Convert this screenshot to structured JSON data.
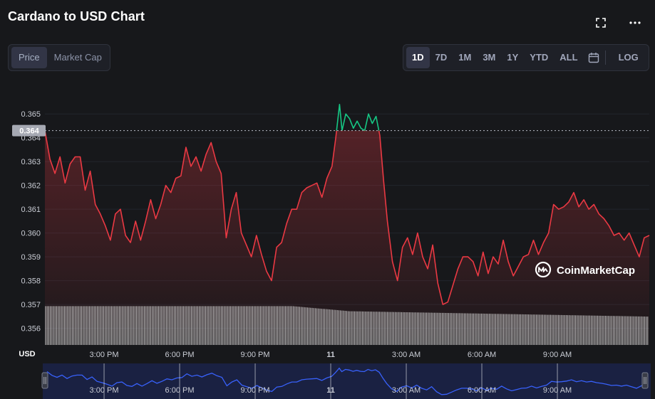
{
  "header": {
    "title": "Cardano to USD Chart",
    "fullscreen_icon": "fullscreen-icon",
    "more_icon": "more-horizontal-icon"
  },
  "view_toggle": {
    "options": [
      "Price",
      "Market Cap"
    ],
    "selected": "Price"
  },
  "ranges": {
    "options": [
      "1D",
      "7D",
      "1M",
      "3M",
      "1Y",
      "YTD",
      "ALL"
    ],
    "selected": "1D",
    "calendar_icon": "calendar-icon",
    "log_label": "LOG"
  },
  "watermark": {
    "text": "CoinMarketCap",
    "icon": "coinmarketcap-logo-icon"
  },
  "colors": {
    "background": "#17181b",
    "down_line": "#ea3943",
    "up_line": "#16c784",
    "navigator_line": "#3861fb",
    "volume": "#e6e6e6"
  },
  "chart_data": {
    "type": "line",
    "title": "Cardano to USD Chart",
    "ylabel": "USD",
    "reference_price": 0.3643,
    "reference_label": "0.364",
    "ylim": [
      0.3553,
      0.3665
    ],
    "yticks": [
      "0.365",
      "0.364",
      "0.363",
      "0.362",
      "0.361",
      "0.360",
      "0.359",
      "0.358",
      "0.357",
      "0.356"
    ],
    "ytick_values": [
      0.365,
      0.364,
      0.363,
      0.362,
      0.361,
      0.36,
      0.359,
      0.358,
      0.357,
      0.356
    ],
    "xlim": [
      0,
      24
    ],
    "xticks": [
      {
        "label": "3:00 PM",
        "hour": 2.35
      },
      {
        "label": "6:00 PM",
        "hour": 5.35
      },
      {
        "label": "9:00 PM",
        "hour": 8.35
      },
      {
        "label": "11",
        "hour": 11.35,
        "bold": true
      },
      {
        "label": "3:00 AM",
        "hour": 14.35
      },
      {
        "label": "6:00 AM",
        "hour": 17.35
      },
      {
        "label": "9:00 AM",
        "hour": 20.35
      }
    ],
    "grid": true,
    "series": [
      {
        "points": [
          [
            0.0,
            0.3643
          ],
          [
            0.2,
            0.3631
          ],
          [
            0.4,
            0.3625
          ],
          [
            0.6,
            0.3632
          ],
          [
            0.8,
            0.3621
          ],
          [
            1.0,
            0.3629
          ],
          [
            1.2,
            0.3632
          ],
          [
            1.4,
            0.3632
          ],
          [
            1.6,
            0.3618
          ],
          [
            1.8,
            0.3626
          ],
          [
            2.0,
            0.3612
          ],
          [
            2.2,
            0.3608
          ],
          [
            2.4,
            0.3603
          ],
          [
            2.6,
            0.3597
          ],
          [
            2.8,
            0.3608
          ],
          [
            3.0,
            0.361
          ],
          [
            3.2,
            0.3599
          ],
          [
            3.4,
            0.3596
          ],
          [
            3.6,
            0.3605
          ],
          [
            3.8,
            0.3597
          ],
          [
            4.0,
            0.3605
          ],
          [
            4.2,
            0.3614
          ],
          [
            4.4,
            0.3606
          ],
          [
            4.6,
            0.3612
          ],
          [
            4.8,
            0.362
          ],
          [
            5.0,
            0.3617
          ],
          [
            5.2,
            0.3623
          ],
          [
            5.4,
            0.3624
          ],
          [
            5.6,
            0.3636
          ],
          [
            5.8,
            0.3628
          ],
          [
            6.0,
            0.3632
          ],
          [
            6.2,
            0.3626
          ],
          [
            6.4,
            0.3633
          ],
          [
            6.6,
            0.3638
          ],
          [
            6.8,
            0.363
          ],
          [
            7.0,
            0.3625
          ],
          [
            7.2,
            0.3598
          ],
          [
            7.4,
            0.361
          ],
          [
            7.6,
            0.3617
          ],
          [
            7.8,
            0.36
          ],
          [
            8.0,
            0.3595
          ],
          [
            8.2,
            0.359
          ],
          [
            8.4,
            0.3599
          ],
          [
            8.6,
            0.3591
          ],
          [
            8.8,
            0.3584
          ],
          [
            9.0,
            0.358
          ],
          [
            9.2,
            0.3594
          ],
          [
            9.4,
            0.3596
          ],
          [
            9.6,
            0.3604
          ],
          [
            9.8,
            0.361
          ],
          [
            10.0,
            0.361
          ],
          [
            10.2,
            0.3617
          ],
          [
            10.4,
            0.3619
          ],
          [
            10.6,
            0.362
          ],
          [
            10.8,
            0.3621
          ],
          [
            11.0,
            0.3615
          ],
          [
            11.2,
            0.3623
          ],
          [
            11.4,
            0.3628
          ],
          [
            11.55,
            0.364
          ],
          [
            11.7,
            0.3654
          ],
          [
            11.8,
            0.3643
          ],
          [
            11.95,
            0.365
          ],
          [
            12.1,
            0.3648
          ],
          [
            12.25,
            0.3644
          ],
          [
            12.4,
            0.3647
          ],
          [
            12.55,
            0.3644
          ],
          [
            12.7,
            0.3643
          ],
          [
            12.85,
            0.365
          ],
          [
            13.0,
            0.3646
          ],
          [
            13.15,
            0.3649
          ],
          [
            13.3,
            0.3641
          ],
          [
            13.45,
            0.3622
          ],
          [
            13.6,
            0.3605
          ],
          [
            13.8,
            0.3588
          ],
          [
            14.0,
            0.358
          ],
          [
            14.2,
            0.3594
          ],
          [
            14.4,
            0.3598
          ],
          [
            14.6,
            0.3591
          ],
          [
            14.8,
            0.36
          ],
          [
            15.0,
            0.359
          ],
          [
            15.2,
            0.3585
          ],
          [
            15.4,
            0.3595
          ],
          [
            15.6,
            0.3579
          ],
          [
            15.8,
            0.357
          ],
          [
            16.0,
            0.3571
          ],
          [
            16.2,
            0.3578
          ],
          [
            16.4,
            0.3585
          ],
          [
            16.6,
            0.359
          ],
          [
            16.8,
            0.359
          ],
          [
            17.0,
            0.3588
          ],
          [
            17.2,
            0.3582
          ],
          [
            17.4,
            0.3592
          ],
          [
            17.6,
            0.3583
          ],
          [
            17.8,
            0.359
          ],
          [
            18.0,
            0.3587
          ],
          [
            18.2,
            0.3597
          ],
          [
            18.4,
            0.3588
          ],
          [
            18.6,
            0.3582
          ],
          [
            18.8,
            0.3586
          ],
          [
            19.0,
            0.359
          ],
          [
            19.2,
            0.3591
          ],
          [
            19.4,
            0.3597
          ],
          [
            19.6,
            0.3591
          ],
          [
            19.8,
            0.3596
          ],
          [
            20.0,
            0.36
          ],
          [
            20.2,
            0.3612
          ],
          [
            20.4,
            0.361
          ],
          [
            20.6,
            0.3611
          ],
          [
            20.8,
            0.3613
          ],
          [
            21.0,
            0.3617
          ],
          [
            21.2,
            0.3611
          ],
          [
            21.4,
            0.3614
          ],
          [
            21.6,
            0.361
          ],
          [
            21.8,
            0.3612
          ],
          [
            22.0,
            0.3608
          ],
          [
            22.2,
            0.3606
          ],
          [
            22.4,
            0.3603
          ],
          [
            22.6,
            0.3599
          ],
          [
            22.8,
            0.36
          ],
          [
            23.0,
            0.3597
          ],
          [
            23.2,
            0.36
          ],
          [
            23.4,
            0.3595
          ],
          [
            23.6,
            0.359
          ],
          [
            23.8,
            0.3598
          ],
          [
            24.0,
            0.3599
          ]
        ]
      }
    ],
    "volume_level": 0.78,
    "navigator": {
      "xticks": [
        "3:00 PM",
        "6:00 PM",
        "9:00 PM",
        "11",
        "3:00 AM",
        "6:00 AM",
        "9:00 AM"
      ]
    }
  }
}
